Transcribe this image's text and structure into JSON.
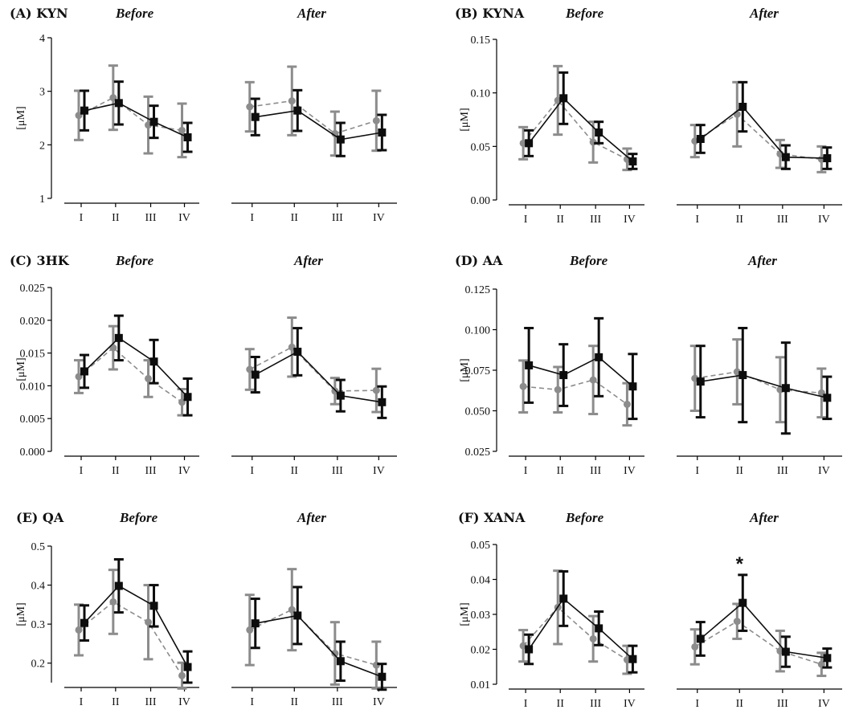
{
  "figure": {
    "phase_before": "Before",
    "phase_after": "After"
  },
  "colors": {
    "series_grey": "#8c8c8c",
    "series_black": "#0d0d0d"
  },
  "chart_data": [
    {
      "panel": "(A) KYN",
      "type": "line",
      "ylabel": "[μM]",
      "categories": [
        "I",
        "II",
        "III",
        "IV"
      ],
      "ylim": [
        1,
        4
      ],
      "yticks": [
        "1",
        "2",
        "3",
        "4"
      ],
      "ytick_values": [
        1,
        2,
        3,
        4
      ],
      "groups": [
        {
          "name": "Before",
          "series": [
            {
              "name": "grey",
              "values": [
                2.55,
                2.88,
                2.37,
                2.27
              ],
              "err": [
                0.46,
                0.6,
                0.53,
                0.5
              ]
            },
            {
              "name": "black",
              "values": [
                2.64,
                2.78,
                2.43,
                2.14
              ],
              "err": [
                0.37,
                0.4,
                0.3,
                0.27
              ]
            }
          ]
        },
        {
          "name": "After",
          "series": [
            {
              "name": "grey",
              "values": [
                2.71,
                2.82,
                2.21,
                2.45
              ],
              "err": [
                0.46,
                0.64,
                0.41,
                0.56
              ]
            },
            {
              "name": "black",
              "values": [
                2.52,
                2.64,
                2.1,
                2.23
              ],
              "err": [
                0.34,
                0.38,
                0.31,
                0.33
              ]
            }
          ]
        }
      ]
    },
    {
      "panel": "(B) KYNA",
      "type": "line",
      "ylabel": "[μM]",
      "categories": [
        "I",
        "II",
        "III",
        "IV"
      ],
      "ylim": [
        0,
        0.15
      ],
      "yticks": [
        "0.00",
        "0.05",
        "0.10",
        "0.15"
      ],
      "ytick_values": [
        0,
        0.05,
        0.1,
        0.15
      ],
      "groups": [
        {
          "name": "Before",
          "series": [
            {
              "name": "grey",
              "values": [
                0.053,
                0.093,
                0.054,
                0.038
              ],
              "err": [
                0.015,
                0.032,
                0.019,
                0.01
              ]
            },
            {
              "name": "black",
              "values": [
                0.053,
                0.095,
                0.063,
                0.036
              ],
              "err": [
                0.012,
                0.024,
                0.01,
                0.007
              ]
            }
          ]
        },
        {
          "name": "After",
          "series": [
            {
              "name": "grey",
              "values": [
                0.055,
                0.08,
                0.043,
                0.038
              ],
              "err": [
                0.015,
                0.03,
                0.013,
                0.012
              ]
            },
            {
              "name": "black",
              "values": [
                0.057,
                0.087,
                0.04,
                0.039
              ],
              "err": [
                0.013,
                0.023,
                0.011,
                0.01
              ]
            }
          ]
        }
      ]
    },
    {
      "panel": "(C) 3HK",
      "type": "line",
      "ylabel": "[μM]",
      "categories": [
        "I",
        "II",
        "III",
        "IV"
      ],
      "ylim": [
        0,
        0.025
      ],
      "yticks": [
        "0.000",
        "0.005",
        "0.010",
        "0.015",
        "0.020",
        "0.025"
      ],
      "ytick_values": [
        0,
        0.005,
        0.01,
        0.015,
        0.02,
        0.025
      ],
      "groups": [
        {
          "name": "Before",
          "series": [
            {
              "name": "grey",
              "values": [
                0.0114,
                0.0158,
                0.0111,
                0.0075
              ],
              "err": [
                0.0025,
                0.0033,
                0.0028,
                0.002
              ]
            },
            {
              "name": "black",
              "values": [
                0.0122,
                0.0173,
                0.0137,
                0.0083
              ],
              "err": [
                0.0025,
                0.0034,
                0.0033,
                0.0028
              ]
            }
          ]
        },
        {
          "name": "After",
          "series": [
            {
              "name": "grey",
              "values": [
                0.0125,
                0.0159,
                0.0092,
                0.0093
              ],
              "err": [
                0.0031,
                0.0045,
                0.002,
                0.0033
              ]
            },
            {
              "name": "black",
              "values": [
                0.0117,
                0.0152,
                0.0085,
                0.0075
              ],
              "err": [
                0.0027,
                0.0036,
                0.0024,
                0.0024
              ]
            }
          ]
        }
      ]
    },
    {
      "panel": "(D) AA",
      "type": "line",
      "ylabel": "[μM]",
      "categories": [
        "I",
        "II",
        "III",
        "IV"
      ],
      "ylim": [
        0.025,
        0.125
      ],
      "yticks": [
        "0.025",
        "0.050",
        "0.075",
        "0.100",
        "0.125"
      ],
      "ytick_values": [
        0.025,
        0.05,
        0.075,
        0.1,
        0.125
      ],
      "groups": [
        {
          "name": "Before",
          "series": [
            {
              "name": "grey",
              "values": [
                0.065,
                0.063,
                0.069,
                0.054
              ],
              "err": [
                0.016,
                0.014,
                0.021,
                0.013
              ]
            },
            {
              "name": "black",
              "values": [
                0.078,
                0.072,
                0.083,
                0.065
              ],
              "err": [
                0.023,
                0.019,
                0.024,
                0.02
              ]
            }
          ]
        },
        {
          "name": "After",
          "series": [
            {
              "name": "grey",
              "values": [
                0.07,
                0.074,
                0.063,
                0.061
              ],
              "err": [
                0.02,
                0.02,
                0.02,
                0.015
              ]
            },
            {
              "name": "black",
              "values": [
                0.068,
                0.072,
                0.064,
                0.058
              ],
              "err": [
                0.022,
                0.029,
                0.028,
                0.013
              ]
            }
          ]
        }
      ]
    },
    {
      "panel": "(E) QA",
      "type": "line",
      "ylabel": "[μM]",
      "categories": [
        "I",
        "II",
        "III",
        "IV"
      ],
      "ylim": [
        0.15,
        0.5
      ],
      "yticks": [
        "0.2",
        "0.3",
        "0.4",
        "0.5"
      ],
      "ytick_values": [
        0.2,
        0.3,
        0.4,
        0.5
      ],
      "groups": [
        {
          "name": "Before",
          "series": [
            {
              "name": "grey",
              "values": [
                0.285,
                0.357,
                0.305,
                0.168
              ],
              "err": [
                0.065,
                0.082,
                0.095,
                0.033
              ]
            },
            {
              "name": "black",
              "values": [
                0.303,
                0.398,
                0.347,
                0.19
              ],
              "err": [
                0.045,
                0.068,
                0.053,
                0.04
              ]
            }
          ]
        },
        {
          "name": "After",
          "series": [
            {
              "name": "grey",
              "values": [
                0.285,
                0.337,
                0.225,
                0.195
              ],
              "err": [
                0.09,
                0.104,
                0.08,
                0.06
              ]
            },
            {
              "name": "black",
              "values": [
                0.302,
                0.322,
                0.205,
                0.165
              ],
              "err": [
                0.063,
                0.073,
                0.05,
                0.033
              ]
            }
          ]
        }
      ]
    },
    {
      "panel": "(F) XANA",
      "type": "line",
      "ylabel": "[μM]",
      "categories": [
        "I",
        "II",
        "III",
        "IV"
      ],
      "ylim": [
        0.01,
        0.05
      ],
      "yticks": [
        "0.01",
        "0.02",
        "0.03",
        "0.04",
        "0.05"
      ],
      "ytick_values": [
        0.01,
        0.02,
        0.03,
        0.04,
        0.05
      ],
      "annotation": {
        "text": "*",
        "group": "After",
        "category": "II"
      },
      "groups": [
        {
          "name": "Before",
          "series": [
            {
              "name": "grey",
              "values": [
                0.021,
                0.032,
                0.023,
                0.017
              ],
              "err": [
                0.0045,
                0.0105,
                0.0065,
                0.004
              ]
            },
            {
              "name": "black",
              "values": [
                0.02,
                0.0345,
                0.026,
                0.0172
              ],
              "err": [
                0.0042,
                0.0078,
                0.0048,
                0.0038
              ]
            }
          ]
        },
        {
          "name": "After",
          "series": [
            {
              "name": "grey",
              "values": [
                0.0207,
                0.028,
                0.0195,
                0.0157
              ],
              "err": [
                0.005,
                0.005,
                0.0058,
                0.0033
              ]
            },
            {
              "name": "black",
              "values": [
                0.023,
                0.0333,
                0.0193,
                0.0175
              ],
              "err": [
                0.0048,
                0.008,
                0.0043,
                0.0027
              ]
            }
          ]
        }
      ]
    }
  ]
}
